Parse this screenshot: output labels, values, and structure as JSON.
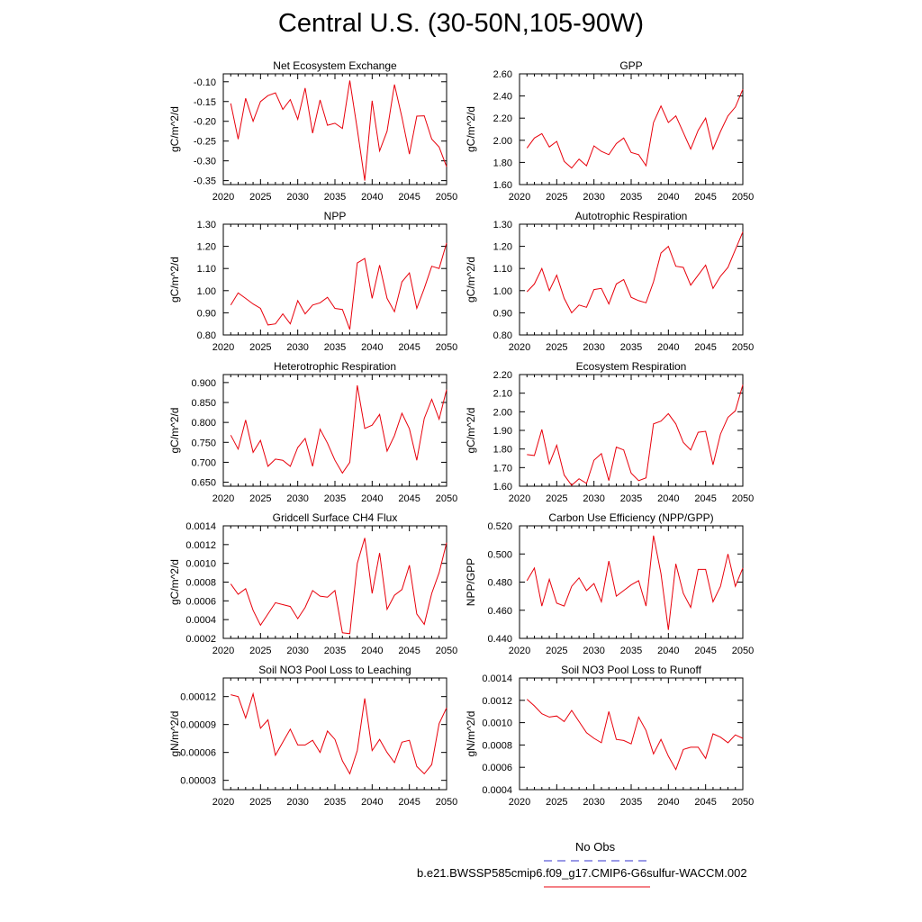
{
  "page_title": "Central U.S. (30-50N,105-90W)",
  "legend": {
    "obs_label": "No Obs",
    "obs_color": "#3333cc",
    "model_label": "b.e21.BWSSP585cmip6.f09_g17.CMIP6-G6sulfur-WACCM.002",
    "model_color": "#e8000b"
  },
  "chart_data": [
    {
      "type": "line",
      "title": "Net Ecosystem Exchange",
      "ylabel": "gC/m^2/d",
      "xlim": [
        2020,
        2050
      ],
      "xticks": [
        "2020",
        "2025",
        "2030",
        "2035",
        "2040",
        "2045",
        "2050"
      ],
      "ylim": [
        -0.36,
        -0.08
      ],
      "yticks": [
        "-0.10",
        "-0.15",
        "-0.20",
        "-0.25",
        "-0.30",
        "-0.35"
      ],
      "series": [
        {
          "x": [
            2021,
            2022,
            2023,
            2024,
            2025,
            2026,
            2027,
            2028,
            2029,
            2030,
            2031,
            2032,
            2033,
            2034,
            2035,
            2036,
            2037,
            2038,
            2039,
            2040,
            2041,
            2042,
            2043,
            2044,
            2045,
            2046,
            2047,
            2048,
            2049,
            2050
          ],
          "values": [
            -0.155,
            -0.245,
            -0.142,
            -0.2,
            -0.15,
            -0.135,
            -0.128,
            -0.17,
            -0.145,
            -0.195,
            -0.116,
            -0.23,
            -0.146,
            -0.21,
            -0.205,
            -0.218,
            -0.097,
            -0.22,
            -0.35,
            -0.148,
            -0.275,
            -0.225,
            -0.107,
            -0.19,
            -0.283,
            -0.187,
            -0.186,
            -0.245,
            -0.265,
            -0.315
          ]
        }
      ]
    },
    {
      "type": "line",
      "title": "GPP",
      "ylabel": "gC/m^2/d",
      "xlim": [
        2020,
        2050
      ],
      "xticks": [
        "2020",
        "2025",
        "2030",
        "2035",
        "2040",
        "2045",
        "2050"
      ],
      "ylim": [
        1.6,
        2.6
      ],
      "yticks": [
        "2.60",
        "2.40",
        "2.20",
        "2.00",
        "1.80",
        "1.60"
      ],
      "series": [
        {
          "x": [
            2021,
            2022,
            2023,
            2024,
            2025,
            2026,
            2027,
            2028,
            2029,
            2030,
            2031,
            2032,
            2033,
            2034,
            2035,
            2036,
            2037,
            2038,
            2039,
            2040,
            2041,
            2042,
            2043,
            2044,
            2045,
            2046,
            2047,
            2048,
            2049,
            2050
          ],
          "values": [
            1.93,
            2.02,
            2.06,
            1.94,
            1.99,
            1.81,
            1.75,
            1.83,
            1.77,
            1.95,
            1.9,
            1.87,
            1.97,
            2.02,
            1.89,
            1.87,
            1.77,
            2.16,
            2.31,
            2.16,
            2.22,
            2.07,
            1.92,
            2.09,
            2.2,
            1.92,
            2.08,
            2.22,
            2.3,
            2.46
          ]
        }
      ]
    },
    {
      "type": "line",
      "title": "NPP",
      "ylabel": "gC/m^2/d",
      "xlim": [
        2020,
        2050
      ],
      "xticks": [
        "2020",
        "2025",
        "2030",
        "2035",
        "2040",
        "2045",
        "2050"
      ],
      "ylim": [
        0.8,
        1.3
      ],
      "yticks": [
        "1.30",
        "1.20",
        "1.10",
        "1.00",
        "0.90",
        "0.80"
      ],
      "series": [
        {
          "x": [
            2021,
            2022,
            2023,
            2024,
            2025,
            2026,
            2027,
            2028,
            2029,
            2030,
            2031,
            2032,
            2033,
            2034,
            2035,
            2036,
            2037,
            2038,
            2039,
            2040,
            2041,
            2042,
            2043,
            2044,
            2045,
            2046,
            2047,
            2048,
            2049,
            2050
          ],
          "values": [
            0.935,
            0.99,
            0.965,
            0.94,
            0.92,
            0.845,
            0.85,
            0.895,
            0.85,
            0.955,
            0.895,
            0.935,
            0.945,
            0.97,
            0.92,
            0.915,
            0.825,
            1.125,
            1.145,
            0.965,
            1.115,
            0.965,
            0.905,
            1.04,
            1.08,
            0.92,
            1.01,
            1.11,
            1.1,
            1.215
          ]
        }
      ]
    },
    {
      "type": "line",
      "title": "Autotrophic Respiration",
      "ylabel": "gC/m^2/d",
      "xlim": [
        2020,
        2050
      ],
      "xticks": [
        "2020",
        "2025",
        "2030",
        "2035",
        "2040",
        "2045",
        "2050"
      ],
      "ylim": [
        0.8,
        1.3
      ],
      "yticks": [
        "1.30",
        "1.20",
        "1.10",
        "1.00",
        "0.90",
        "0.80"
      ],
      "series": [
        {
          "x": [
            2021,
            2022,
            2023,
            2024,
            2025,
            2026,
            2027,
            2028,
            2029,
            2030,
            2031,
            2032,
            2033,
            2034,
            2035,
            2036,
            2037,
            2038,
            2039,
            2040,
            2041,
            2042,
            2043,
            2044,
            2045,
            2046,
            2047,
            2048,
            2049,
            2050
          ],
          "values": [
            0.995,
            1.03,
            1.1,
            1.0,
            1.07,
            0.965,
            0.9,
            0.935,
            0.925,
            1.005,
            1.01,
            0.94,
            1.03,
            1.05,
            0.97,
            0.955,
            0.945,
            1.04,
            1.17,
            1.2,
            1.11,
            1.105,
            1.025,
            1.07,
            1.115,
            1.01,
            1.065,
            1.105,
            1.185,
            1.265
          ]
        }
      ]
    },
    {
      "type": "line",
      "title": "Heterotrophic Respiration",
      "ylabel": "gC/m^2/d",
      "xlim": [
        2020,
        2050
      ],
      "xticks": [
        "2020",
        "2025",
        "2030",
        "2035",
        "2040",
        "2045",
        "2050"
      ],
      "ylim": [
        0.64,
        0.92
      ],
      "yticks": [
        "0.900",
        "0.850",
        "0.800",
        "0.750",
        "0.700",
        "0.650"
      ],
      "series": [
        {
          "x": [
            2021,
            2022,
            2023,
            2024,
            2025,
            2026,
            2027,
            2028,
            2029,
            2030,
            2031,
            2032,
            2033,
            2034,
            2035,
            2036,
            2037,
            2038,
            2039,
            2040,
            2041,
            2042,
            2043,
            2044,
            2045,
            2046,
            2047,
            2048,
            2049,
            2050
          ],
          "values": [
            0.768,
            0.733,
            0.806,
            0.725,
            0.755,
            0.69,
            0.708,
            0.705,
            0.69,
            0.737,
            0.76,
            0.69,
            0.783,
            0.748,
            0.705,
            0.673,
            0.7,
            0.893,
            0.785,
            0.793,
            0.82,
            0.728,
            0.767,
            0.823,
            0.784,
            0.705,
            0.81,
            0.858,
            0.808,
            0.882
          ]
        }
      ]
    },
    {
      "type": "line",
      "title": "Ecosystem Respiration",
      "ylabel": "gC/m^2/d",
      "xlim": [
        2020,
        2050
      ],
      "xticks": [
        "2020",
        "2025",
        "2030",
        "2035",
        "2040",
        "2045",
        "2050"
      ],
      "ylim": [
        1.6,
        2.2
      ],
      "yticks": [
        "2.20",
        "2.10",
        "2.00",
        "1.90",
        "1.80",
        "1.70",
        "1.60"
      ],
      "series": [
        {
          "x": [
            2021,
            2022,
            2023,
            2024,
            2025,
            2026,
            2027,
            2028,
            2029,
            2030,
            2031,
            2032,
            2033,
            2034,
            2035,
            2036,
            2037,
            2038,
            2039,
            2040,
            2041,
            2042,
            2043,
            2044,
            2045,
            2046,
            2047,
            2048,
            2049,
            2050
          ],
          "values": [
            1.77,
            1.765,
            1.905,
            1.72,
            1.82,
            1.66,
            1.605,
            1.64,
            1.615,
            1.74,
            1.775,
            1.63,
            1.81,
            1.795,
            1.67,
            1.63,
            1.645,
            1.935,
            1.95,
            1.99,
            1.935,
            1.835,
            1.795,
            1.89,
            1.895,
            1.715,
            1.88,
            1.97,
            2.005,
            2.145
          ]
        }
      ]
    },
    {
      "type": "line",
      "title": "Gridcell Surface CH4 Flux",
      "ylabel": "gC/m^2/d",
      "xlim": [
        2020,
        2050
      ],
      "xticks": [
        "2020",
        "2025",
        "2030",
        "2035",
        "2040",
        "2045",
        "2050"
      ],
      "ylim": [
        0.0002,
        0.0014
      ],
      "yticks": [
        "0.0014",
        "0.0012",
        "0.0010",
        "0.0008",
        "0.0006",
        "0.0004",
        "0.0002"
      ],
      "series": [
        {
          "x": [
            2021,
            2022,
            2023,
            2024,
            2025,
            2026,
            2027,
            2028,
            2029,
            2030,
            2031,
            2032,
            2033,
            2034,
            2035,
            2036,
            2037,
            2038,
            2039,
            2040,
            2041,
            2042,
            2043,
            2044,
            2045,
            2046,
            2047,
            2048,
            2049,
            2050
          ],
          "values": [
            0.00078,
            0.00067,
            0.00073,
            0.0005,
            0.00034,
            0.00046,
            0.00058,
            0.00056,
            0.00054,
            0.00041,
            0.00053,
            0.00071,
            0.00065,
            0.00064,
            0.00071,
            0.00026,
            0.00025,
            0.001,
            0.00127,
            0.00068,
            0.00111,
            0.00051,
            0.00066,
            0.00072,
            0.00098,
            0.00046,
            0.00035,
            0.00068,
            0.0009,
            0.00122
          ]
        }
      ]
    },
    {
      "type": "line",
      "title": "Carbon Use Efficiency (NPP/GPP)",
      "ylabel": "NPP/GPP",
      "xlim": [
        2020,
        2050
      ],
      "xticks": [
        "2020",
        "2025",
        "2030",
        "2035",
        "2040",
        "2045",
        "2050"
      ],
      "ylim": [
        0.44,
        0.52
      ],
      "yticks": [
        "0.520",
        "0.500",
        "0.480",
        "0.460",
        "0.440"
      ],
      "series": [
        {
          "x": [
            2021,
            2022,
            2023,
            2024,
            2025,
            2026,
            2027,
            2028,
            2029,
            2030,
            2031,
            2032,
            2033,
            2034,
            2035,
            2036,
            2037,
            2038,
            2039,
            2040,
            2041,
            2042,
            2043,
            2044,
            2045,
            2046,
            2047,
            2048,
            2049,
            2050
          ],
          "values": [
            0.481,
            0.49,
            0.463,
            0.482,
            0.465,
            0.463,
            0.477,
            0.483,
            0.474,
            0.479,
            0.466,
            0.495,
            0.47,
            0.474,
            0.478,
            0.481,
            0.463,
            0.513,
            0.486,
            0.446,
            0.493,
            0.472,
            0.462,
            0.489,
            0.489,
            0.466,
            0.477,
            0.5,
            0.477,
            0.49
          ]
        }
      ]
    },
    {
      "type": "line",
      "title": "Soil NO3 Pool Loss to Leaching",
      "ylabel": "gN/m^2/d",
      "xlim": [
        2020,
        2050
      ],
      "xticks": [
        "2020",
        "2025",
        "2030",
        "2035",
        "2040",
        "2045",
        "2050"
      ],
      "ylim": [
        2e-05,
        0.00014
      ],
      "yticks": [
        "0.00012",
        "0.00009",
        "0.00006",
        "0.00003"
      ],
      "ytick_values": [
        0.00012,
        9e-05,
        6e-05,
        3e-05
      ],
      "series": [
        {
          "x": [
            2021,
            2022,
            2023,
            2024,
            2025,
            2026,
            2027,
            2028,
            2029,
            2030,
            2031,
            2032,
            2033,
            2034,
            2035,
            2036,
            2037,
            2038,
            2039,
            2040,
            2041,
            2042,
            2043,
            2044,
            2045,
            2046,
            2047,
            2048,
            2049,
            2050
          ],
          "values": [
            0.000122,
            0.00012,
            9.7e-05,
            0.000123,
            8.6e-05,
            9.5e-05,
            5.7e-05,
            7.1e-05,
            8.5e-05,
            6.8e-05,
            6.8e-05,
            7.3e-05,
            6e-05,
            8.3e-05,
            7.4e-05,
            5.1e-05,
            3.7e-05,
            6.2e-05,
            0.000118,
            6.2e-05,
            7.4e-05,
            6e-05,
            4.9e-05,
            7.1e-05,
            7.3e-05,
            4.5e-05,
            3.7e-05,
            4.7e-05,
            9.1e-05,
            0.000108
          ]
        }
      ]
    },
    {
      "type": "line",
      "title": "Soil NO3 Pool Loss to Runoff",
      "ylabel": "gN/m^2/d",
      "xlim": [
        2020,
        2050
      ],
      "xticks": [
        "2020",
        "2025",
        "2030",
        "2035",
        "2040",
        "2045",
        "2050"
      ],
      "ylim": [
        0.0004,
        0.0014
      ],
      "yticks": [
        "0.0014",
        "0.0012",
        "0.0010",
        "0.0008",
        "0.0006",
        "0.0004"
      ],
      "series": [
        {
          "x": [
            2021,
            2022,
            2023,
            2024,
            2025,
            2026,
            2027,
            2028,
            2029,
            2030,
            2031,
            2032,
            2033,
            2034,
            2035,
            2036,
            2037,
            2038,
            2039,
            2040,
            2041,
            2042,
            2043,
            2044,
            2045,
            2046,
            2047,
            2048,
            2049,
            2050
          ],
          "values": [
            0.00121,
            0.00115,
            0.00108,
            0.00105,
            0.00106,
            0.00101,
            0.00111,
            0.00101,
            0.00091,
            0.00086,
            0.00082,
            0.0011,
            0.00085,
            0.00084,
            0.00081,
            0.00105,
            0.00093,
            0.00072,
            0.00085,
            0.0007,
            0.00058,
            0.00076,
            0.00078,
            0.00078,
            0.00068,
            0.0009,
            0.00087,
            0.00082,
            0.00089,
            0.00086
          ]
        }
      ]
    }
  ]
}
